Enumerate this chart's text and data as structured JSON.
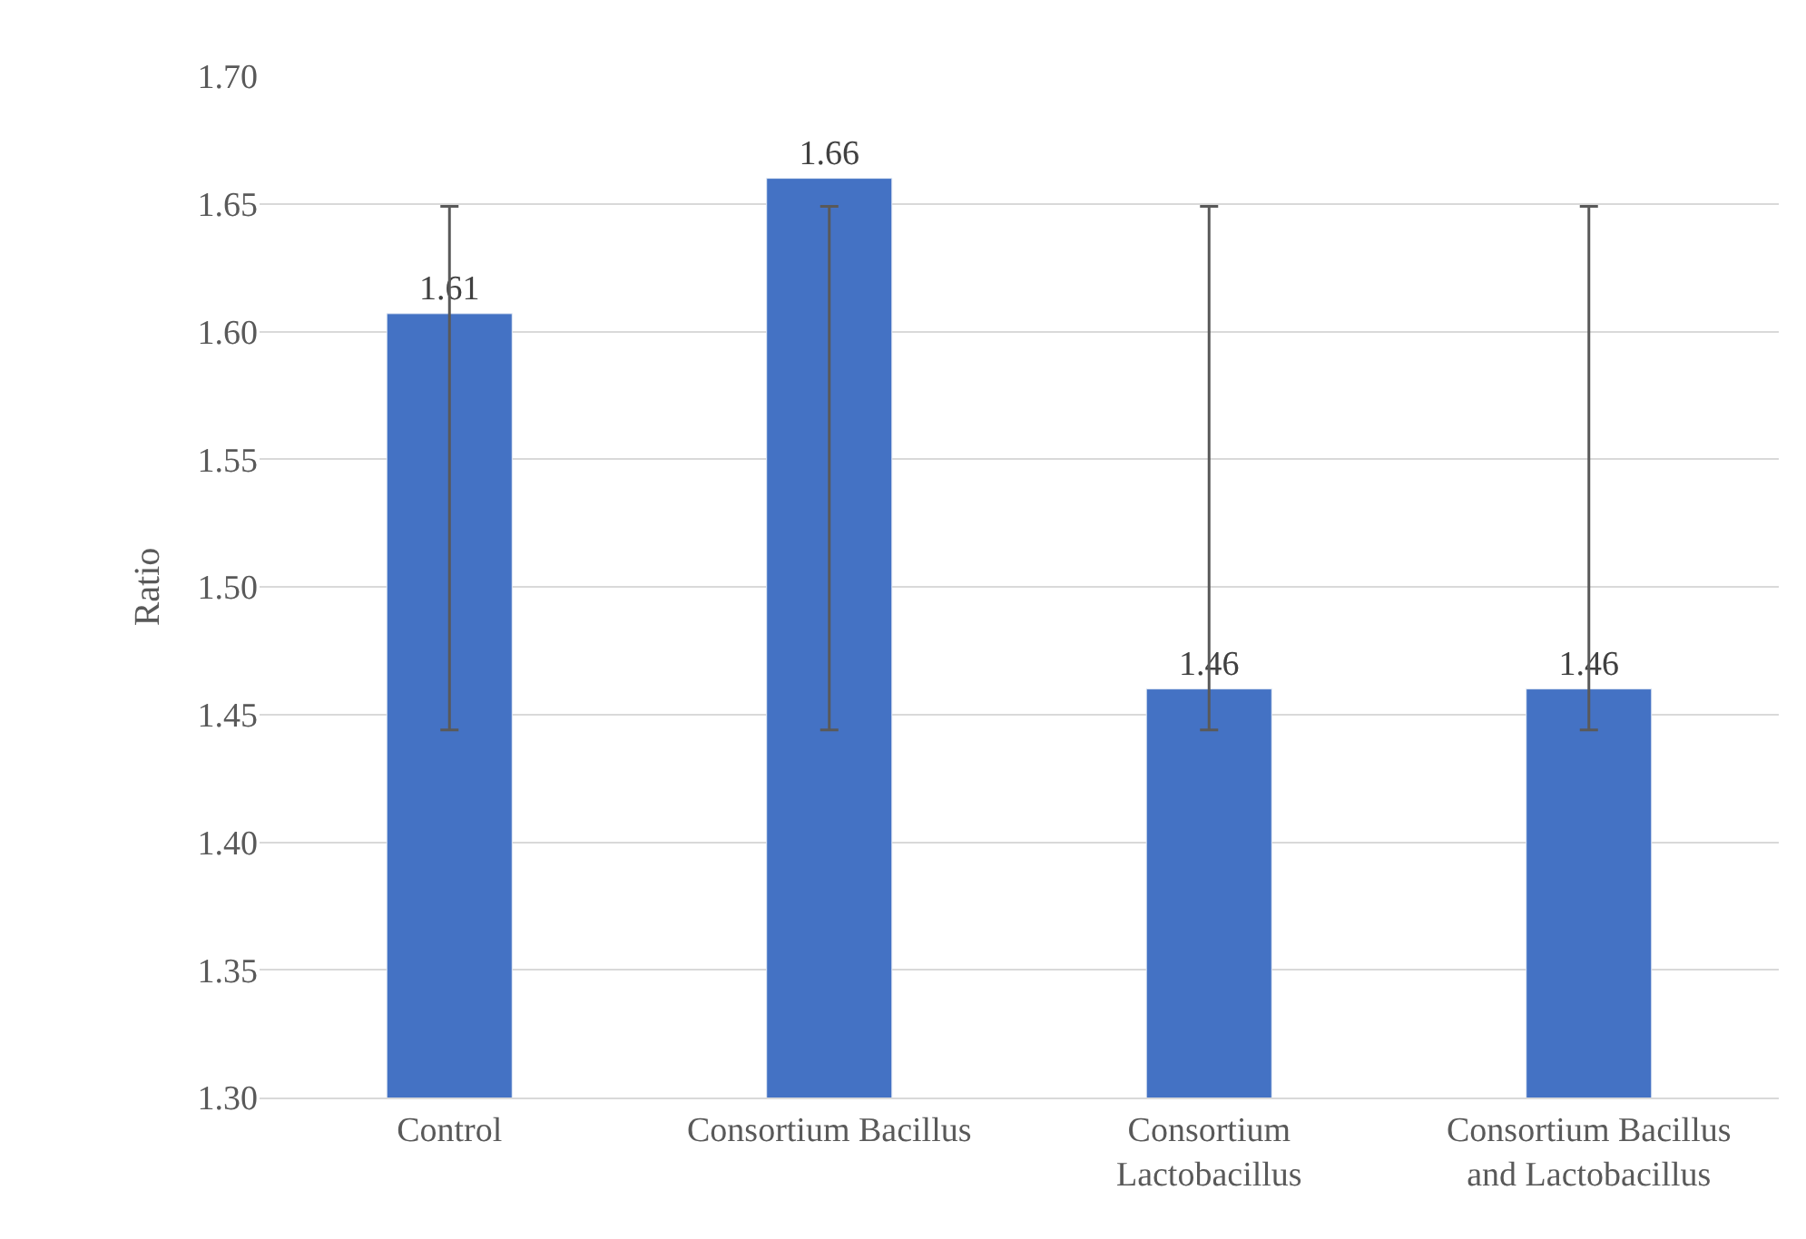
{
  "chart_data": {
    "type": "bar",
    "ylabel": "Ratio",
    "categories": [
      "Control",
      "Consortium Bacillus",
      "Consortium Lactobacillus",
      "Consortium Bacillus and Lactobacillus"
    ],
    "values": [
      1.607,
      1.66,
      1.46,
      1.46
    ],
    "value_labels": [
      "1.61",
      "1.66",
      "1.46",
      "1.46"
    ],
    "errors": [
      [
        1.444,
        1.649
      ],
      [
        1.444,
        1.649
      ],
      [
        1.444,
        1.649
      ],
      [
        1.444,
        1.649
      ]
    ],
    "color": "#4472c4",
    "ylim": [
      1.3,
      1.7
    ],
    "yticks": [
      {
        "value": 1.3,
        "label": "1.30"
      },
      {
        "value": 1.35,
        "label": "1.35"
      },
      {
        "value": 1.4,
        "label": "1.40"
      },
      {
        "value": 1.45,
        "label": "1.45"
      },
      {
        "value": 1.5,
        "label": "1.50"
      },
      {
        "value": 1.55,
        "label": "1.55"
      },
      {
        "value": 1.6,
        "label": "1.60"
      },
      {
        "value": 1.65,
        "label": "1.65"
      },
      {
        "value": 1.7,
        "label": "1.70"
      }
    ],
    "grid": "y"
  }
}
